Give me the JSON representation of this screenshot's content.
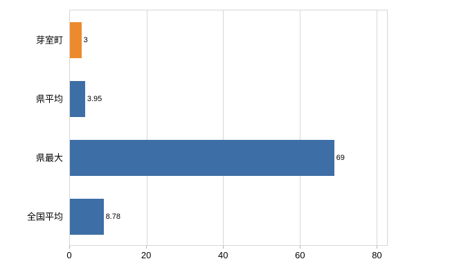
{
  "chart_data": {
    "type": "bar",
    "orientation": "horizontal",
    "title": "",
    "xlabel": "",
    "ylabel": "",
    "categories": [
      "芽室町",
      "県平均",
      "県最大",
      "全国平均"
    ],
    "values": [
      3,
      3.95,
      69,
      8.78
    ],
    "value_labels": [
      "3",
      "3.95",
      "69",
      "8.78"
    ],
    "bar_colors": [
      "#ee8a2e",
      "#3d6ea6",
      "#3d6ea6",
      "#3d6ea6"
    ],
    "xlim": [
      0,
      82.8
    ],
    "x_ticks": [
      0,
      20,
      40,
      60,
      80
    ],
    "grid": true,
    "legend_position": "none"
  },
  "colors": {
    "bar_default": "#3d6ea6",
    "bar_highlight": "#ee8a2e",
    "gridline": "#d6d6d6",
    "plot_border": "#d6d6d6",
    "text": "#000000",
    "background": "#ffffff"
  }
}
